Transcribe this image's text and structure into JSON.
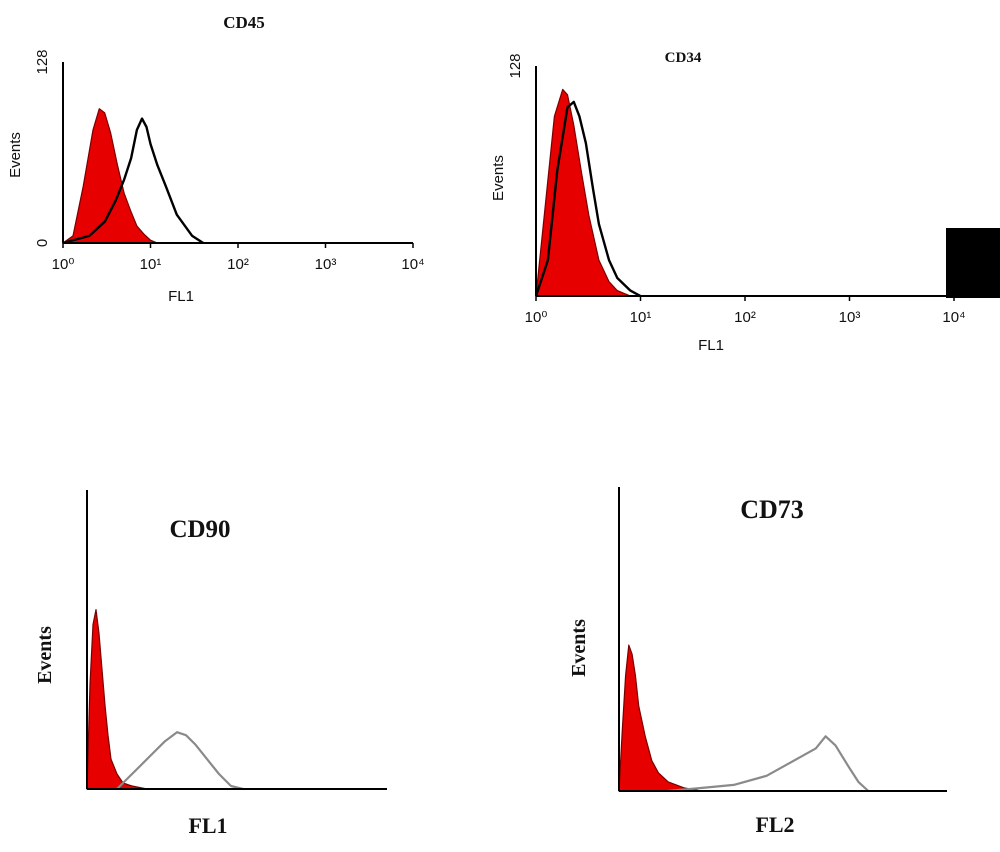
{
  "colors": {
    "isotype_fill": "#e60000",
    "marker_line_dark": "#000000",
    "marker_line_light": "#8a8a8a",
    "axis": "#000000"
  },
  "chart_data": [
    {
      "type": "area",
      "title": "CD45",
      "xlabel": "FL1",
      "ylabel": "Events",
      "x_scale": "log",
      "xlim": [
        1,
        10000
      ],
      "ylim": [
        0,
        128
      ],
      "x_ticks": [
        "10⁰",
        "10¹",
        "10²",
        "10³",
        "10⁴"
      ],
      "y_ticks": [
        "0",
        "128"
      ],
      "series": [
        {
          "style": "filled-red",
          "x": [
            1,
            1.3,
            1.7,
            2.2,
            2.6,
            3.0,
            3.5,
            4.2,
            5.0,
            6.0,
            7.0,
            8.5,
            10,
            12
          ],
          "values": [
            0,
            5,
            40,
            80,
            95,
            92,
            78,
            55,
            35,
            22,
            12,
            6,
            2,
            0
          ]
        },
        {
          "style": "black-line",
          "x": [
            1,
            2,
            3,
            4,
            5,
            6,
            7,
            8,
            9,
            10,
            12,
            15,
            20,
            30,
            40
          ],
          "values": [
            0,
            5,
            15,
            30,
            45,
            60,
            80,
            88,
            82,
            70,
            55,
            40,
            20,
            5,
            0
          ]
        }
      ]
    },
    {
      "type": "area",
      "title": "CD34",
      "xlabel": "FL1",
      "ylabel": "Events",
      "x_scale": "log",
      "xlim": [
        1,
        10000
      ],
      "ylim": [
        0,
        128
      ],
      "x_ticks": [
        "10⁰",
        "10¹",
        "10²",
        "10³",
        "10⁴"
      ],
      "y_ticks": [
        "128"
      ],
      "series": [
        {
          "style": "filled-red",
          "x": [
            1,
            1.2,
            1.5,
            1.8,
            2.0,
            2.3,
            2.7,
            3.2,
            4.0,
            5.0,
            6.0,
            8.0
          ],
          "values": [
            0,
            45,
            100,
            115,
            112,
            95,
            70,
            45,
            20,
            8,
            3,
            0
          ]
        },
        {
          "style": "black-line",
          "x": [
            1,
            1.3,
            1.6,
            2.0,
            2.3,
            2.6,
            3.0,
            3.5,
            4.0,
            5.0,
            6.0,
            8.0,
            10
          ],
          "values": [
            0,
            20,
            70,
            105,
            108,
            100,
            85,
            60,
            40,
            20,
            10,
            3,
            0
          ]
        }
      ]
    },
    {
      "type": "area",
      "title": "CD90",
      "xlabel": "FL1",
      "ylabel": "Events",
      "xlim": [
        0,
        100
      ],
      "ylim": [
        0,
        100
      ],
      "series": [
        {
          "style": "filled-red",
          "x": [
            0,
            1,
            2,
            3,
            4,
            5,
            6,
            7,
            8,
            10,
            12,
            15,
            20
          ],
          "values": [
            0,
            35,
            55,
            60,
            52,
            40,
            28,
            18,
            10,
            5,
            2,
            1,
            0
          ]
        },
        {
          "style": "grey-line",
          "x": [
            10,
            14,
            18,
            22,
            26,
            30,
            33,
            36,
            40,
            44,
            48,
            52
          ],
          "values": [
            0,
            4,
            8,
            12,
            16,
            19,
            18,
            15,
            10,
            5,
            1,
            0
          ]
        }
      ]
    },
    {
      "type": "area",
      "title": "CD73",
      "xlabel": "FL2",
      "ylabel": "Events",
      "xlim": [
        0,
        100
      ],
      "ylim": [
        0,
        100
      ],
      "series": [
        {
          "style": "filled-red",
          "x": [
            0,
            1,
            2,
            3,
            4,
            5,
            6,
            8,
            10,
            12,
            15,
            20,
            25
          ],
          "values": [
            0,
            20,
            38,
            48,
            45,
            38,
            28,
            18,
            10,
            6,
            3,
            1,
            0
          ]
        },
        {
          "style": "grey-line",
          "x": [
            15,
            25,
            35,
            45,
            50,
            55,
            60,
            63,
            66,
            70,
            73,
            76
          ],
          "values": [
            0,
            1,
            2,
            5,
            8,
            11,
            14,
            18,
            15,
            8,
            3,
            0
          ]
        }
      ]
    }
  ]
}
